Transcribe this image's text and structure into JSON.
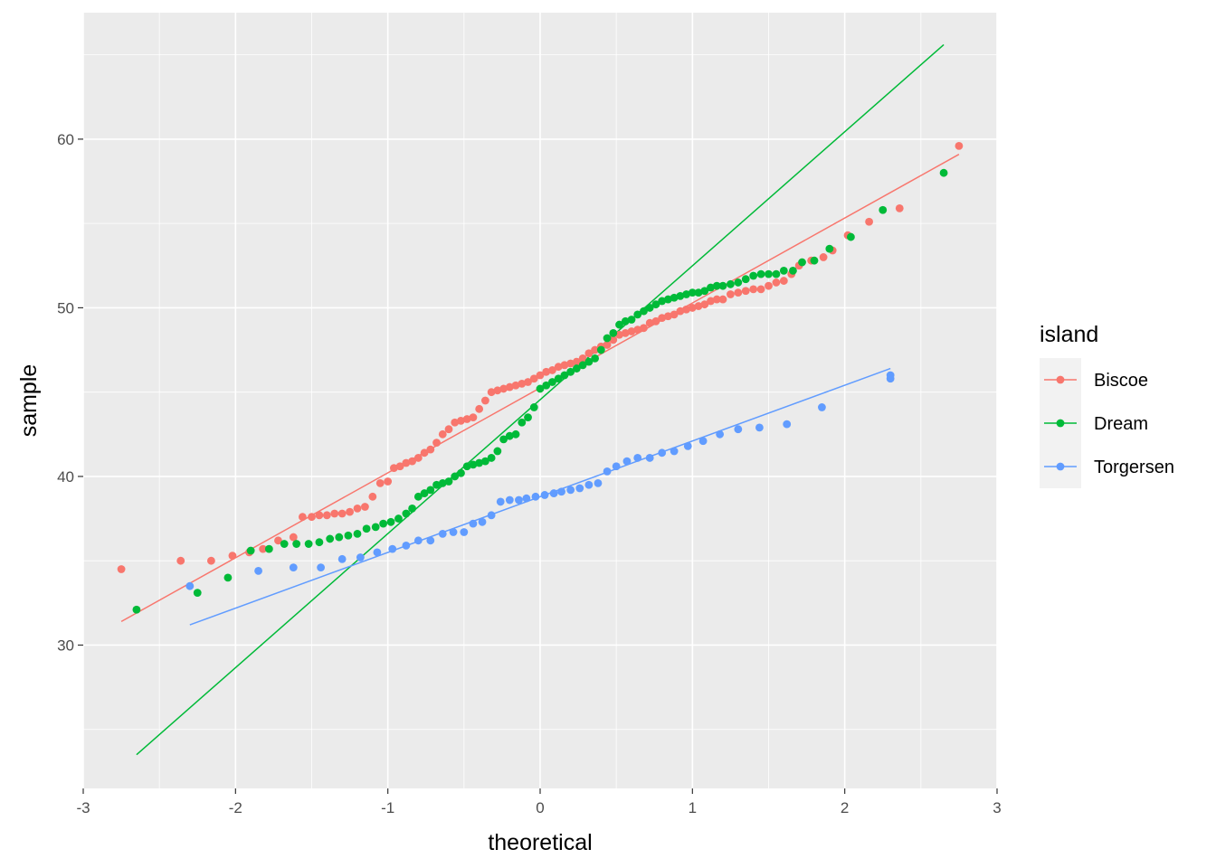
{
  "chart_data": {
    "type": "scatter",
    "subtype": "qq-plot",
    "xlabel": "theoretical",
    "ylabel": "sample",
    "xlim": [
      -3,
      3
    ],
    "ylim": [
      21.5,
      67.5
    ],
    "x_ticks": [
      -3,
      -2,
      -1,
      0,
      1,
      2,
      3
    ],
    "x_tick_labels": [
      "-3",
      "-2",
      "-1",
      "0",
      "1",
      "2",
      "3"
    ],
    "y_ticks": [
      30,
      40,
      50,
      60
    ],
    "y_tick_labels": [
      "30",
      "40",
      "50",
      "60"
    ],
    "grid": true,
    "legend": {
      "title": "island",
      "placement": "right"
    },
    "series": [
      {
        "name": "Biscoe",
        "color": "#F8766D",
        "qq_line": {
          "x": [
            -2.75,
            2.75
          ],
          "y": [
            31.4,
            59.1
          ]
        },
        "points": [
          [
            -2.75,
            34.5
          ],
          [
            -2.36,
            35.0
          ],
          [
            -2.16,
            35.0
          ],
          [
            -2.02,
            35.3
          ],
          [
            -1.91,
            35.5
          ],
          [
            -1.82,
            35.7
          ],
          [
            -1.72,
            36.2
          ],
          [
            -1.62,
            36.4
          ],
          [
            -1.56,
            37.6
          ],
          [
            -1.5,
            37.6
          ],
          [
            -1.45,
            37.7
          ],
          [
            -1.4,
            37.7
          ],
          [
            -1.35,
            37.8
          ],
          [
            -1.3,
            37.8
          ],
          [
            -1.25,
            37.9
          ],
          [
            -1.2,
            38.1
          ],
          [
            -1.15,
            38.2
          ],
          [
            -1.1,
            38.8
          ],
          [
            -1.05,
            39.6
          ],
          [
            -1.0,
            39.7
          ],
          [
            -0.96,
            40.5
          ],
          [
            -0.92,
            40.6
          ],
          [
            -0.88,
            40.8
          ],
          [
            -0.84,
            40.9
          ],
          [
            -0.8,
            41.1
          ],
          [
            -0.76,
            41.4
          ],
          [
            -0.72,
            41.6
          ],
          [
            -0.68,
            42.0
          ],
          [
            -0.64,
            42.5
          ],
          [
            -0.6,
            42.8
          ],
          [
            -0.56,
            43.2
          ],
          [
            -0.52,
            43.3
          ],
          [
            -0.48,
            43.4
          ],
          [
            -0.44,
            43.5
          ],
          [
            -0.4,
            44.0
          ],
          [
            -0.36,
            44.5
          ],
          [
            -0.32,
            45.0
          ],
          [
            -0.28,
            45.1
          ],
          [
            -0.24,
            45.2
          ],
          [
            -0.2,
            45.3
          ],
          [
            -0.16,
            45.4
          ],
          [
            -0.12,
            45.5
          ],
          [
            -0.08,
            45.6
          ],
          [
            -0.04,
            45.8
          ],
          [
            0.0,
            46.0
          ],
          [
            0.04,
            46.2
          ],
          [
            0.08,
            46.3
          ],
          [
            0.12,
            46.5
          ],
          [
            0.16,
            46.6
          ],
          [
            0.2,
            46.7
          ],
          [
            0.24,
            46.8
          ],
          [
            0.28,
            47.0
          ],
          [
            0.32,
            47.3
          ],
          [
            0.36,
            47.5
          ],
          [
            0.4,
            47.7
          ],
          [
            0.44,
            47.8
          ],
          [
            0.48,
            48.1
          ],
          [
            0.52,
            48.4
          ],
          [
            0.56,
            48.5
          ],
          [
            0.6,
            48.6
          ],
          [
            0.64,
            48.7
          ],
          [
            0.68,
            48.8
          ],
          [
            0.72,
            49.1
          ],
          [
            0.76,
            49.2
          ],
          [
            0.8,
            49.4
          ],
          [
            0.84,
            49.5
          ],
          [
            0.88,
            49.6
          ],
          [
            0.92,
            49.8
          ],
          [
            0.96,
            49.9
          ],
          [
            1.0,
            50.0
          ],
          [
            1.04,
            50.1
          ],
          [
            1.08,
            50.2
          ],
          [
            1.12,
            50.4
          ],
          [
            1.16,
            50.5
          ],
          [
            1.2,
            50.5
          ],
          [
            1.25,
            50.8
          ],
          [
            1.3,
            50.9
          ],
          [
            1.35,
            51.0
          ],
          [
            1.4,
            51.1
          ],
          [
            1.45,
            51.1
          ],
          [
            1.5,
            51.3
          ],
          [
            1.55,
            51.5
          ],
          [
            1.6,
            51.6
          ],
          [
            1.65,
            52.0
          ],
          [
            1.7,
            52.5
          ],
          [
            1.78,
            52.8
          ],
          [
            1.86,
            53.0
          ],
          [
            1.92,
            53.4
          ],
          [
            2.02,
            54.3
          ],
          [
            2.16,
            55.1
          ],
          [
            2.36,
            55.9
          ],
          [
            2.75,
            59.6
          ]
        ]
      },
      {
        "name": "Dream",
        "color": "#00BA38",
        "qq_line": {
          "x": [
            -2.65,
            2.65
          ],
          "y": [
            23.5,
            65.6
          ]
        },
        "points": [
          [
            -2.65,
            32.1
          ],
          [
            -2.25,
            33.1
          ],
          [
            -2.05,
            34.0
          ],
          [
            -1.9,
            35.6
          ],
          [
            -1.78,
            35.7
          ],
          [
            -1.68,
            36.0
          ],
          [
            -1.6,
            36.0
          ],
          [
            -1.52,
            36.0
          ],
          [
            -1.45,
            36.1
          ],
          [
            -1.38,
            36.3
          ],
          [
            -1.32,
            36.4
          ],
          [
            -1.26,
            36.5
          ],
          [
            -1.2,
            36.6
          ],
          [
            -1.14,
            36.9
          ],
          [
            -1.08,
            37.0
          ],
          [
            -1.03,
            37.2
          ],
          [
            -0.98,
            37.3
          ],
          [
            -0.93,
            37.5
          ],
          [
            -0.88,
            37.8
          ],
          [
            -0.84,
            38.1
          ],
          [
            -0.8,
            38.8
          ],
          [
            -0.76,
            39.0
          ],
          [
            -0.72,
            39.2
          ],
          [
            -0.68,
            39.5
          ],
          [
            -0.64,
            39.6
          ],
          [
            -0.6,
            39.7
          ],
          [
            -0.56,
            40.0
          ],
          [
            -0.52,
            40.2
          ],
          [
            -0.48,
            40.6
          ],
          [
            -0.44,
            40.7
          ],
          [
            -0.4,
            40.8
          ],
          [
            -0.36,
            40.9
          ],
          [
            -0.32,
            41.1
          ],
          [
            -0.28,
            41.5
          ],
          [
            -0.24,
            42.2
          ],
          [
            -0.2,
            42.4
          ],
          [
            -0.16,
            42.5
          ],
          [
            -0.12,
            43.2
          ],
          [
            -0.08,
            43.5
          ],
          [
            -0.04,
            44.1
          ],
          [
            0.0,
            45.2
          ],
          [
            0.04,
            45.4
          ],
          [
            0.08,
            45.6
          ],
          [
            0.12,
            45.8
          ],
          [
            0.16,
            46.0
          ],
          [
            0.2,
            46.2
          ],
          [
            0.24,
            46.4
          ],
          [
            0.28,
            46.6
          ],
          [
            0.32,
            46.8
          ],
          [
            0.36,
            47.0
          ],
          [
            0.4,
            47.5
          ],
          [
            0.44,
            48.2
          ],
          [
            0.48,
            48.5
          ],
          [
            0.52,
            49.0
          ],
          [
            0.56,
            49.2
          ],
          [
            0.6,
            49.3
          ],
          [
            0.64,
            49.6
          ],
          [
            0.68,
            49.8
          ],
          [
            0.72,
            50.0
          ],
          [
            0.76,
            50.2
          ],
          [
            0.8,
            50.4
          ],
          [
            0.84,
            50.5
          ],
          [
            0.88,
            50.6
          ],
          [
            0.92,
            50.7
          ],
          [
            0.96,
            50.8
          ],
          [
            1.0,
            50.9
          ],
          [
            1.04,
            50.9
          ],
          [
            1.08,
            51.0
          ],
          [
            1.12,
            51.2
          ],
          [
            1.16,
            51.3
          ],
          [
            1.2,
            51.3
          ],
          [
            1.25,
            51.4
          ],
          [
            1.3,
            51.5
          ],
          [
            1.35,
            51.7
          ],
          [
            1.4,
            51.9
          ],
          [
            1.45,
            52.0
          ],
          [
            1.5,
            52.0
          ],
          [
            1.55,
            52.0
          ],
          [
            1.6,
            52.2
          ],
          [
            1.66,
            52.2
          ],
          [
            1.72,
            52.7
          ],
          [
            1.8,
            52.8
          ],
          [
            1.9,
            53.5
          ],
          [
            2.04,
            54.2
          ],
          [
            2.25,
            55.8
          ],
          [
            2.65,
            58.0
          ]
        ]
      },
      {
        "name": "Torgersen",
        "color": "#619CFF",
        "qq_line": {
          "x": [
            -2.3,
            2.3
          ],
          "y": [
            31.2,
            46.4
          ]
        },
        "points": [
          [
            -2.3,
            33.5
          ],
          [
            -1.85,
            34.4
          ],
          [
            -1.62,
            34.6
          ],
          [
            -1.44,
            34.6
          ],
          [
            -1.3,
            35.1
          ],
          [
            -1.18,
            35.2
          ],
          [
            -1.07,
            35.5
          ],
          [
            -0.97,
            35.7
          ],
          [
            -0.88,
            35.9
          ],
          [
            -0.8,
            36.2
          ],
          [
            -0.72,
            36.2
          ],
          [
            -0.64,
            36.6
          ],
          [
            -0.57,
            36.7
          ],
          [
            -0.5,
            36.7
          ],
          [
            -0.44,
            37.2
          ],
          [
            -0.38,
            37.3
          ],
          [
            -0.32,
            37.7
          ],
          [
            -0.26,
            38.5
          ],
          [
            -0.2,
            38.6
          ],
          [
            -0.14,
            38.6
          ],
          [
            -0.09,
            38.7
          ],
          [
            -0.03,
            38.8
          ],
          [
            0.03,
            38.9
          ],
          [
            0.09,
            39.0
          ],
          [
            0.14,
            39.1
          ],
          [
            0.2,
            39.2
          ],
          [
            0.26,
            39.3
          ],
          [
            0.32,
            39.5
          ],
          [
            0.38,
            39.6
          ],
          [
            0.44,
            40.3
          ],
          [
            0.5,
            40.6
          ],
          [
            0.57,
            40.9
          ],
          [
            0.64,
            41.1
          ],
          [
            0.72,
            41.1
          ],
          [
            0.8,
            41.4
          ],
          [
            0.88,
            41.5
          ],
          [
            0.97,
            41.8
          ],
          [
            1.07,
            42.1
          ],
          [
            1.18,
            42.5
          ],
          [
            1.3,
            42.8
          ],
          [
            1.44,
            42.9
          ],
          [
            1.62,
            43.1
          ],
          [
            1.85,
            44.1
          ],
          [
            2.3,
            45.8
          ],
          [
            2.3,
            46.0
          ]
        ]
      }
    ]
  }
}
